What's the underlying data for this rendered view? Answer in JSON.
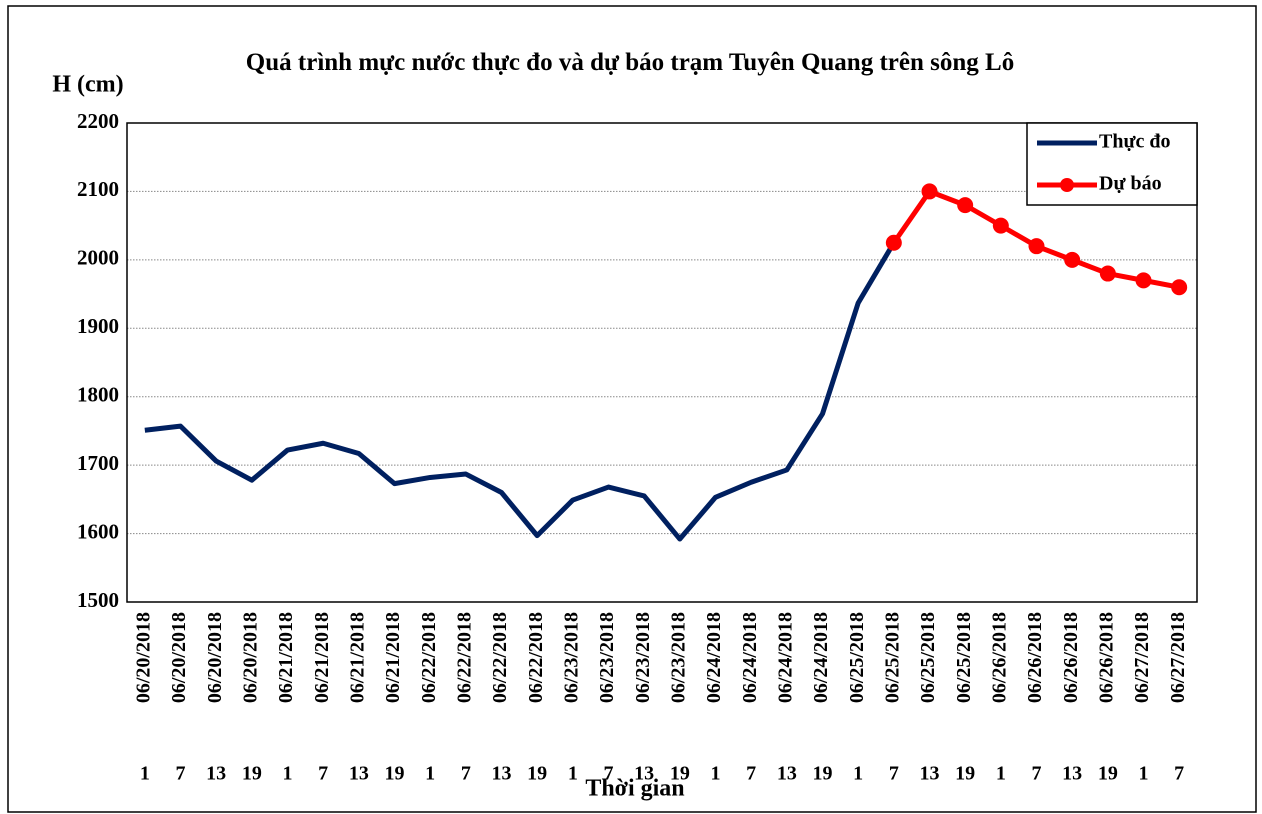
{
  "chart_data": {
    "type": "line",
    "title": "Quá trình mực nước thực đo và dự báo trạm Tuyên Quang trên sông Lô",
    "y_label": "H (cm)",
    "x_label": "Thời gian",
    "categories": [
      "06/20/2018",
      "06/20/2018",
      "06/20/2018",
      "06/20/2018",
      "06/21/2018",
      "06/21/2018",
      "06/21/2018",
      "06/21/2018",
      "06/22/2018",
      "06/22/2018",
      "06/22/2018",
      "06/22/2018",
      "06/23/2018",
      "06/23/2018",
      "06/23/2018",
      "06/23/2018",
      "06/24/2018",
      "06/24/2018",
      "06/24/2018",
      "06/24/2018",
      "06/25/2018",
      "06/25/2018",
      "06/25/2018",
      "06/25/2018",
      "06/26/2018",
      "06/26/2018",
      "06/26/2018",
      "06/26/2018",
      "06/27/2018",
      "06/27/2018"
    ],
    "hours": [
      1,
      7,
      13,
      19,
      1,
      7,
      13,
      19,
      1,
      7,
      13,
      19,
      1,
      7,
      13,
      19,
      1,
      7,
      13,
      19,
      1,
      7,
      13,
      19,
      1,
      7,
      13,
      19,
      1,
      7
    ],
    "series": [
      {
        "name": "Thực đo",
        "color": "#002060",
        "markers": false,
        "values": [
          1751,
          1757,
          1706,
          1678,
          1722,
          1732,
          1717,
          1673,
          1682,
          1687,
          1660,
          1597,
          1649,
          1668,
          1655,
          1592,
          1653,
          1675,
          1693,
          1775,
          1937,
          2025,
          null,
          null,
          null,
          null,
          null,
          null,
          null,
          null
        ]
      },
      {
        "name": "Dự báo",
        "color": "#ff0000",
        "markers": true,
        "values": [
          null,
          null,
          null,
          null,
          null,
          null,
          null,
          null,
          null,
          null,
          null,
          null,
          null,
          null,
          null,
          null,
          null,
          null,
          null,
          null,
          null,
          2025,
          2100,
          2080,
          2050,
          2020,
          2000,
          1980,
          1970,
          1960
        ]
      }
    ],
    "ylim": [
      1500,
      2200
    ],
    "yticks": [
      1500,
      1600,
      1700,
      1800,
      1900,
      2000,
      2100,
      2200
    ],
    "grid": true,
    "legend": "top-right"
  }
}
